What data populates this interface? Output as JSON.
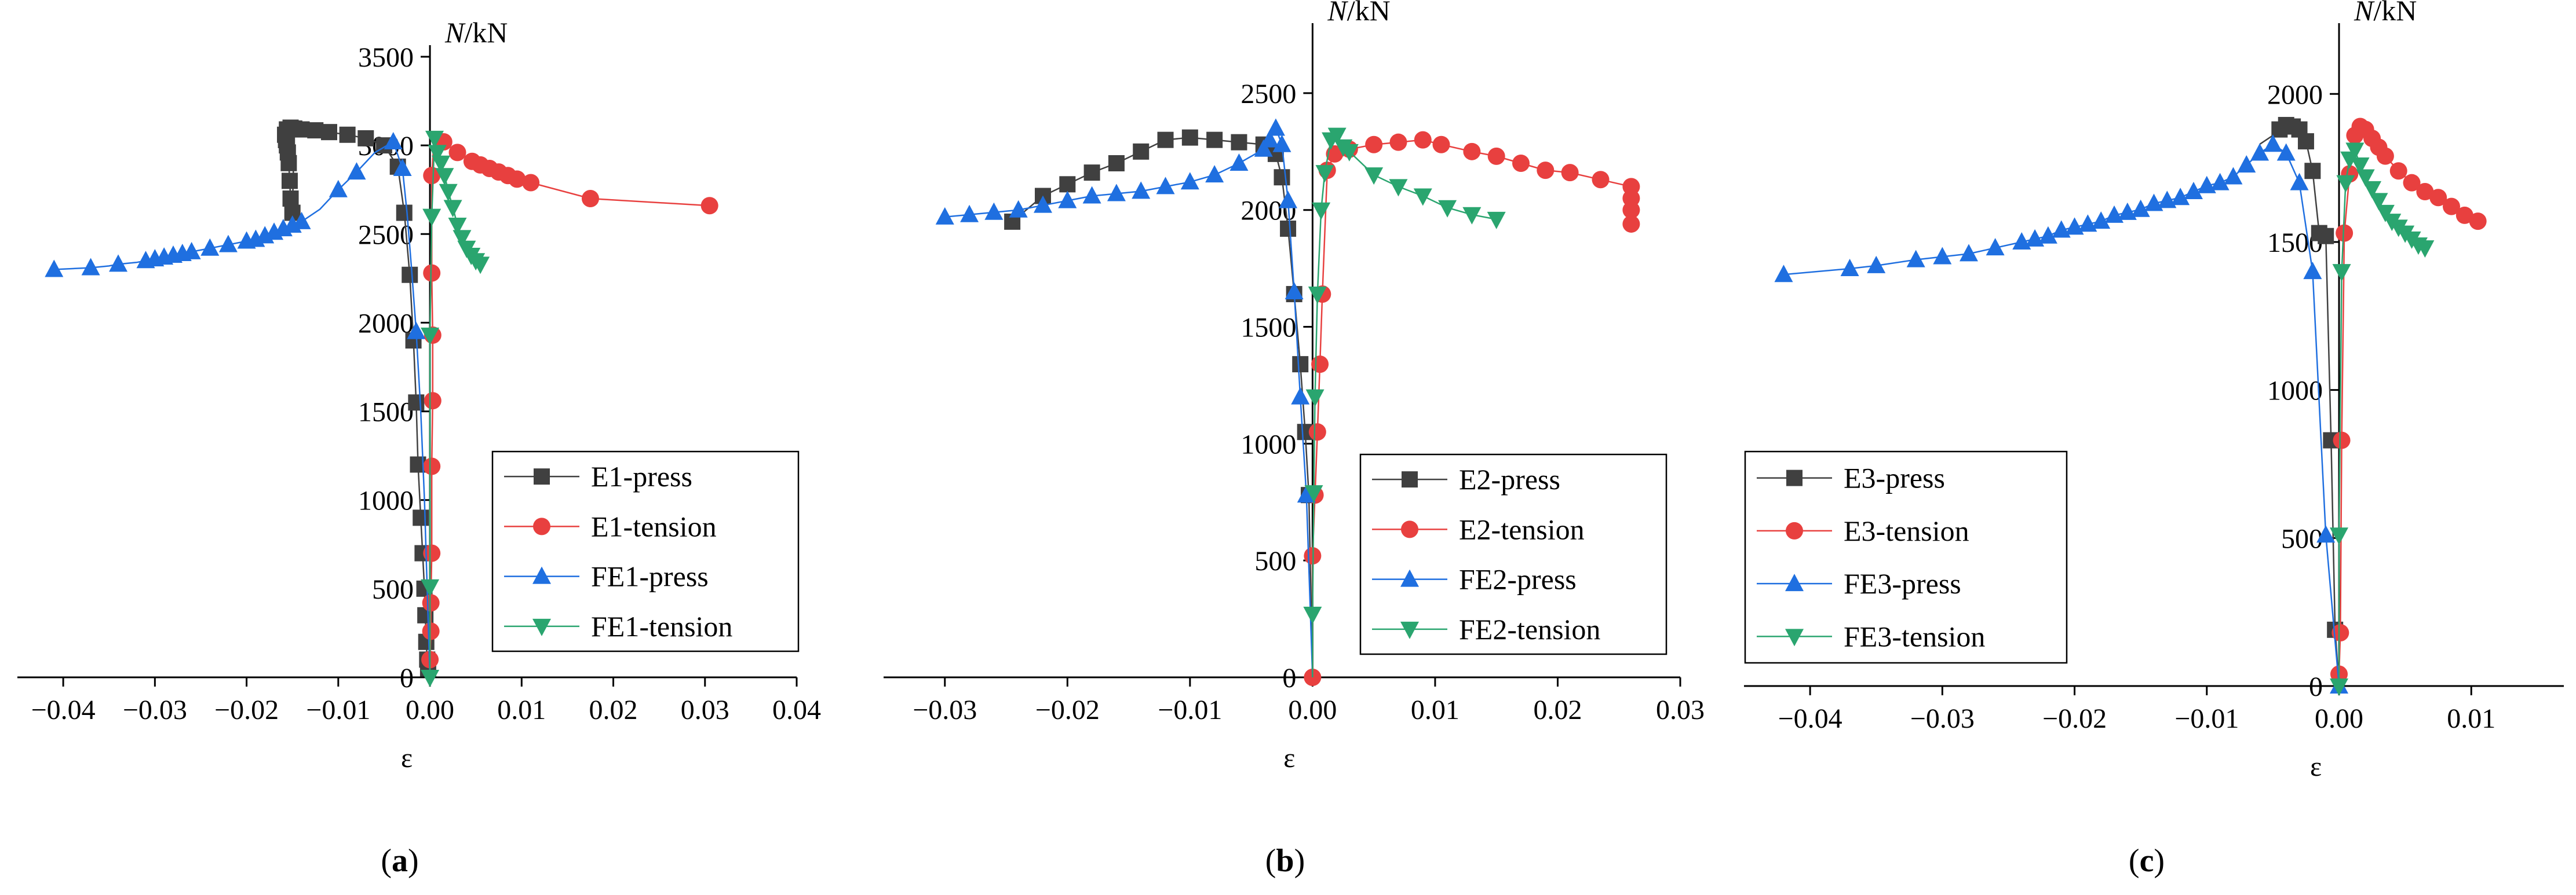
{
  "figure": {
    "panels": [
      {
        "prefix": "(",
        "letter": "a",
        "suffix": ")"
      },
      {
        "prefix": "(",
        "letter": "b",
        "suffix": ")"
      },
      {
        "prefix": "(",
        "letter": "c",
        "suffix": ")"
      }
    ]
  },
  "colors": {
    "press": "#404040",
    "tension": "#e8403f",
    "fe_press": "#1f6fe0",
    "fe_tension": "#2aa56f",
    "axis": "#000000"
  },
  "chart_data": [
    {
      "type": "line",
      "xlabel": "ε",
      "ylabel_italic": "N",
      "ylabel_unit": "/kN",
      "xlim": [
        -0.045,
        0.04
      ],
      "ylim": [
        0,
        3500
      ],
      "xticks": [
        -0.04,
        -0.03,
        -0.02,
        -0.01,
        0.0,
        0.01,
        0.02,
        0.03,
        0.04
      ],
      "xtick_labels": [
        "−0.04",
        "−0.03",
        "−0.02",
        "−0.01",
        "0.00",
        "0.01",
        "0.02",
        "0.03",
        "0.04"
      ],
      "yticks": [
        0,
        500,
        1000,
        1500,
        2000,
        2500,
        3000,
        3500
      ],
      "ytick_labels": [
        "0",
        "500",
        "1000",
        "1500",
        "2000",
        "2500",
        "3000",
        "3500"
      ],
      "legend_position": "lower-right",
      "series": [
        {
          "name": "E1-press",
          "marker": "square",
          "color_key": "press",
          "x": [
            -0.0002,
            -0.0003,
            -0.0004,
            -0.0005,
            -0.0006,
            -0.0008,
            -0.001,
            -0.0013,
            -0.0015,
            -0.0018,
            -0.0022,
            -0.0028,
            -0.0035,
            -0.005,
            -0.007,
            -0.009,
            -0.011,
            -0.0125,
            -0.014,
            -0.0148,
            -0.015,
            -0.0152,
            -0.0153,
            -0.0154,
            -0.0155,
            -0.0156,
            -0.0157,
            -0.0158,
            -0.0156,
            -0.0152
          ],
          "y": [
            50,
            100,
            200,
            350,
            500,
            700,
            900,
            1200,
            1550,
            1900,
            2270,
            2620,
            2880,
            3000,
            3040,
            3060,
            3075,
            3085,
            3090,
            3095,
            2620,
            2700,
            2800,
            2900,
            2960,
            3000,
            3030,
            3060,
            3090,
            3100
          ]
        },
        {
          "name": "E1-tension",
          "marker": "circle",
          "color_key": "tension",
          "x": [
            0.0,
            0.0,
            0.0001,
            0.0001,
            0.0002,
            0.0002,
            0.0003,
            0.0003,
            0.0002,
            0.0002,
            0.0004,
            0.0008,
            0.0015,
            0.0022,
            0.003,
            0.0038,
            0.0046,
            0.0055,
            0.0065,
            0.0075,
            0.0085,
            0.0095,
            0.011,
            0.0175,
            0.0305
          ],
          "y": [
            30,
            100,
            260,
            420,
            700,
            1190,
            1560,
            1930,
            2280,
            2830,
            3000,
            3060,
            3020,
            2990,
            2960,
            2940,
            2910,
            2890,
            2870,
            2850,
            2830,
            2810,
            2790,
            2700,
            2660
          ],
          "markers_at": [
            1,
            2,
            3,
            4,
            5,
            6,
            7,
            8,
            9,
            12,
            14,
            16,
            17,
            18,
            19,
            20,
            21,
            22,
            23,
            24
          ]
        },
        {
          "name": "FE1-press",
          "marker": "triangle-up",
          "color_key": "fe_press",
          "x": [
            0.0,
            -0.0003,
            -0.0006,
            -0.001,
            -0.0015,
            -0.002,
            -0.0025,
            -0.003,
            -0.004,
            -0.006,
            -0.008,
            -0.01,
            -0.012,
            -0.014,
            -0.015,
            -0.016,
            -0.017,
            -0.018,
            -0.019,
            -0.02,
            -0.021,
            -0.022,
            -0.024,
            -0.025,
            -0.026,
            -0.027,
            -0.028,
            -0.029,
            -0.03,
            -0.031,
            -0.032,
            -0.034,
            -0.035,
            -0.037,
            -0.041
          ],
          "y": [
            0,
            500,
            1000,
            1500,
            1950,
            2300,
            2620,
            2870,
            3020,
            2960,
            2850,
            2750,
            2640,
            2570,
            2550,
            2530,
            2510,
            2490,
            2470,
            2460,
            2450,
            2440,
            2420,
            2410,
            2400,
            2390,
            2380,
            2370,
            2360,
            2350,
            2340,
            2330,
            2320,
            2310,
            2300
          ],
          "markers_at": [
            4,
            7,
            8,
            10,
            11,
            13,
            14,
            15,
            16,
            17,
            18,
            19,
            21,
            22,
            24,
            25,
            26,
            27,
            28,
            29,
            31,
            33,
            34
          ]
        },
        {
          "name": "FE1-tension",
          "marker": "triangle-down",
          "color_key": "fe_tension",
          "x": [
            0.0,
            0.0,
            0.0,
            0.0002,
            0.0005,
            0.0008,
            0.0012,
            0.0016,
            0.002,
            0.0025,
            0.003,
            0.0035,
            0.004,
            0.0045,
            0.005,
            0.0055
          ],
          "y": [
            0,
            510,
            1930,
            2600,
            3040,
            2960,
            2900,
            2830,
            2740,
            2650,
            2550,
            2480,
            2420,
            2380,
            2350,
            2330
          ]
        }
      ]
    },
    {
      "type": "line",
      "xlabel": "ε",
      "ylabel_italic": "N",
      "ylabel_unit": "/kN",
      "xlim": [
        -0.035,
        0.03
      ],
      "ylim": [
        0,
        2750
      ],
      "xticks": [
        -0.03,
        -0.02,
        -0.01,
        0.0,
        0.01,
        0.02,
        0.03
      ],
      "xtick_labels": [
        "−0.03",
        "−0.02",
        "−0.01",
        "0.00",
        "0.01",
        "0.02",
        "0.03"
      ],
      "yticks": [
        0,
        500,
        1000,
        1500,
        2000,
        2500
      ],
      "ytick_labels": [
        "0",
        "500",
        "1000",
        "1500",
        "2000",
        "2500"
      ],
      "legend_position": "lower-right",
      "series": [
        {
          "name": "E2-press",
          "marker": "square",
          "color_key": "press",
          "x": [
            0.0,
            -0.0003,
            -0.0006,
            -0.001,
            -0.0015,
            -0.002,
            -0.0025,
            -0.003,
            -0.004,
            -0.006,
            -0.008,
            -0.01,
            -0.012,
            -0.014,
            -0.016,
            -0.018,
            -0.02,
            -0.022,
            -0.0245
          ],
          "y": [
            0,
            780,
            1050,
            1340,
            1640,
            1920,
            2140,
            2240,
            2280,
            2290,
            2300,
            2310,
            2300,
            2250,
            2200,
            2160,
            2110,
            2060,
            1950
          ],
          "markers_at": [
            1,
            2,
            3,
            4,
            5,
            6,
            7,
            8,
            9,
            10,
            11,
            12,
            13,
            14,
            15,
            16,
            17,
            18
          ]
        },
        {
          "name": "E2-tension",
          "marker": "circle",
          "color_key": "tension",
          "x": [
            0.0,
            0.0,
            0.0002,
            0.0004,
            0.0006,
            0.0008,
            0.0012,
            0.0018,
            0.003,
            0.005,
            0.007,
            0.009,
            0.0105,
            0.013,
            0.015,
            0.017,
            0.019,
            0.021,
            0.0235,
            0.026,
            0.026,
            0.026,
            0.026
          ],
          "y": [
            0,
            520,
            780,
            1050,
            1340,
            1640,
            2170,
            2240,
            2260,
            2280,
            2290,
            2300,
            2280,
            2250,
            2230,
            2200,
            2170,
            2160,
            2130,
            2100,
            2050,
            2000,
            1940
          ]
        },
        {
          "name": "FE2-press",
          "marker": "triangle-up",
          "color_key": "fe_press",
          "x": [
            0.0,
            -0.0005,
            -0.001,
            -0.0015,
            -0.002,
            -0.0025,
            -0.003,
            -0.0035,
            -0.004,
            -0.006,
            -0.008,
            -0.01,
            -0.012,
            -0.014,
            -0.016,
            -0.018,
            -0.02,
            -0.022,
            -0.024,
            -0.026,
            -0.028,
            -0.03
          ],
          "y": [
            0,
            780,
            1200,
            1650,
            2040,
            2280,
            2350,
            2300,
            2260,
            2200,
            2150,
            2120,
            2100,
            2080,
            2070,
            2060,
            2040,
            2020,
            2000,
            1990,
            1980,
            1970
          ],
          "markers_at": [
            1,
            2,
            3,
            4,
            5,
            6,
            7,
            8,
            9,
            10,
            11,
            12,
            13,
            14,
            15,
            16,
            17,
            18,
            19,
            20,
            21
          ]
        },
        {
          "name": "FE2-tension",
          "marker": "triangle-down",
          "color_key": "fe_tension",
          "x": [
            0.0,
            0.0,
            0.0001,
            0.0002,
            0.0004,
            0.0007,
            0.001,
            0.0015,
            0.002,
            0.0025,
            0.003,
            0.005,
            0.007,
            0.009,
            0.011,
            0.013,
            0.015
          ],
          "y": [
            0,
            270,
            790,
            1200,
            1640,
            2000,
            2160,
            2300,
            2320,
            2270,
            2250,
            2150,
            2100,
            2060,
            2010,
            1980,
            1960
          ],
          "markers_at": [
            1,
            2,
            3,
            4,
            5,
            6,
            7,
            8,
            9,
            10,
            11,
            12,
            13,
            14,
            15,
            16
          ]
        }
      ]
    },
    {
      "type": "line",
      "xlabel": "ε",
      "ylabel_italic": "N",
      "ylabel_unit": "/kN",
      "xlim": [
        -0.045,
        0.017
      ],
      "ylim": [
        0,
        2200
      ],
      "xticks": [
        -0.04,
        -0.03,
        -0.02,
        -0.01,
        0.0,
        0.01
      ],
      "xtick_labels": [
        "−0.04",
        "−0.03",
        "−0.02",
        "−0.01",
        "0.00",
        "0.01"
      ],
      "yticks": [
        0,
        500,
        1000,
        1500,
        2000
      ],
      "ytick_labels": [
        "0",
        "500",
        "1000",
        "1500",
        "2000"
      ],
      "legend_position": "lower-left",
      "series": [
        {
          "name": "E3-press",
          "marker": "square",
          "color_key": "press",
          "x": [
            0.0,
            -0.0003,
            -0.0006,
            -0.001,
            -0.0015,
            -0.002,
            -0.0025,
            -0.003,
            -0.0035,
            -0.004,
            -0.0045,
            -0.005,
            -0.006
          ],
          "y": [
            0,
            190,
            830,
            1520,
            1530,
            1740,
            1840,
            1880,
            1890,
            1895,
            1880,
            1860,
            1830
          ],
          "markers_at": [
            1,
            2,
            3,
            4,
            5,
            6,
            7,
            8,
            9,
            10
          ]
        },
        {
          "name": "E3-tension",
          "marker": "circle",
          "color_key": "tension",
          "x": [
            0.0,
            0.0,
            0.0001,
            0.0002,
            0.0004,
            0.0008,
            0.0012,
            0.0016,
            0.002,
            0.0025,
            0.003,
            0.0035,
            0.0045,
            0.0055,
            0.0065,
            0.0075,
            0.0085,
            0.0095,
            0.0105
          ],
          "y": [
            0,
            40,
            180,
            830,
            1530,
            1730,
            1860,
            1890,
            1880,
            1850,
            1820,
            1790,
            1740,
            1700,
            1670,
            1650,
            1620,
            1590,
            1570
          ],
          "markers_at": [
            1,
            2,
            3,
            4,
            5,
            6,
            7,
            8,
            9,
            10,
            11,
            12,
            13,
            14,
            15,
            16,
            17,
            18
          ]
        },
        {
          "name": "FE3-press",
          "marker": "triangle-up",
          "color_key": "fe_press",
          "x": [
            0.0,
            -0.001,
            -0.002,
            -0.003,
            -0.004,
            -0.005,
            -0.006,
            -0.007,
            -0.008,
            -0.009,
            -0.01,
            -0.011,
            -0.012,
            -0.013,
            -0.014,
            -0.015,
            -0.016,
            -0.017,
            -0.018,
            -0.019,
            -0.02,
            -0.021,
            -0.022,
            -0.023,
            -0.024,
            -0.026,
            -0.028,
            -0.03,
            -0.032,
            -0.035,
            -0.037,
            -0.042
          ],
          "y": [
            0,
            510,
            1400,
            1700,
            1800,
            1830,
            1800,
            1760,
            1720,
            1700,
            1690,
            1670,
            1650,
            1640,
            1630,
            1610,
            1600,
            1590,
            1570,
            1560,
            1550,
            1540,
            1520,
            1510,
            1500,
            1480,
            1460,
            1450,
            1440,
            1420,
            1410,
            1390
          ]
        },
        {
          "name": "FE3-tension",
          "marker": "triangle-down",
          "color_key": "fe_tension",
          "x": [
            0.0,
            0.0,
            0.0002,
            0.0005,
            0.0008,
            0.0012,
            0.0016,
            0.002,
            0.0025,
            0.003,
            0.0035,
            0.004,
            0.0045,
            0.005,
            0.0055,
            0.006,
            0.0065
          ],
          "y": [
            0,
            510,
            1400,
            1700,
            1780,
            1810,
            1760,
            1720,
            1680,
            1640,
            1600,
            1570,
            1550,
            1530,
            1510,
            1490,
            1480
          ]
        }
      ]
    }
  ]
}
